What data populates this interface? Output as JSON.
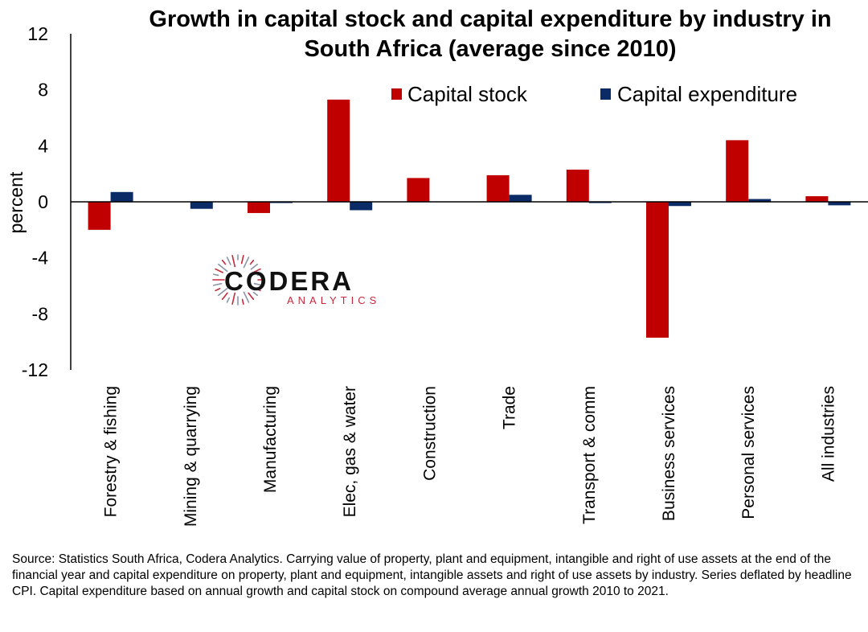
{
  "colors": {
    "capital_stock": "#c00000",
    "capital_expenditure": "#0a2b66",
    "axis": "#000000",
    "logo_dark": "#111111",
    "logo_accent": "#c8283c"
  },
  "chart_data": {
    "type": "bar",
    "title_lines": [
      "Growth in capital stock and capital expenditure by industry in",
      "South Africa (average since 2010)"
    ],
    "ylabel": "percent",
    "xlabel": "",
    "ylim": [
      -12,
      12
    ],
    "yticks": [
      12,
      8,
      4,
      0,
      -4,
      -8,
      -12
    ],
    "ytick_labels": [
      "12",
      "8",
      "4",
      "0",
      "-4",
      "-8",
      "-12"
    ],
    "legend_position": "top-right",
    "categories": [
      "Forestry & fishing",
      "Mining & quarrying",
      "Manufacturing",
      "Elec, gas & water",
      "Construction",
      "Trade",
      "Transport & comm",
      "Business services",
      "Personal services",
      "All industries"
    ],
    "series": [
      {
        "name": "Capital stock",
        "color": "#c00000",
        "values": [
          -2.0,
          0.0,
          -0.8,
          7.3,
          1.7,
          1.9,
          2.3,
          -9.7,
          4.4,
          0.4
        ]
      },
      {
        "name": "Capital expenditure",
        "color": "#0a2b66",
        "values": [
          0.7,
          -0.5,
          -0.05,
          -0.6,
          0.0,
          0.5,
          -0.05,
          -0.3,
          0.2,
          -0.25
        ]
      }
    ]
  },
  "logo": {
    "name": "CODERA",
    "subtitle": "ANALYTICS"
  },
  "source_note": "Source: Statistics South Africa, Codera Analytics. Carrying value of property, plant and equipment, intangible and right of use assets at the end of the financial year and capital expenditure on property, plant and equipment, intangible assets and right of use assets by industry. Series deflated by headline CPI. Capital expenditure based on annual growth and capital stock on compound average annual growth 2010 to 2021."
}
